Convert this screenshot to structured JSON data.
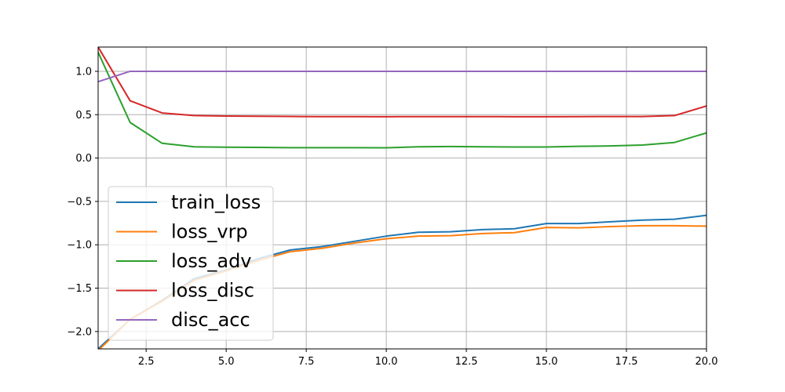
{
  "chart_data": {
    "type": "line",
    "title": "",
    "xlabel": "",
    "ylabel": "",
    "xlim": [
      1,
      20
    ],
    "ylim": [
      -2.2,
      1.28
    ],
    "grid": true,
    "legend_position": "lower-left",
    "x": [
      1,
      2,
      3,
      4,
      5,
      6,
      7,
      8,
      9,
      10,
      11,
      12,
      13,
      14,
      15,
      16,
      17,
      18,
      19,
      20
    ],
    "x_ticks": [
      2.5,
      5.0,
      7.5,
      10.0,
      12.5,
      15.0,
      17.5,
      20.0
    ],
    "x_tick_labels": [
      "2.5",
      "5.0",
      "7.5",
      "10.0",
      "12.5",
      "15.0",
      "17.5",
      "20.0"
    ],
    "y_ticks": [
      -2.0,
      -1.5,
      -1.0,
      -0.5,
      0.0,
      0.5,
      1.0
    ],
    "y_tick_labels": [
      "−2.0",
      "−1.5",
      "−1.0",
      "−0.5",
      "0.0",
      "0.5",
      "1.0"
    ],
    "series": [
      {
        "name": "train_loss",
        "color": "#1f77b4",
        "values": [
          -2.2,
          -1.86,
          -1.64,
          -1.39,
          -1.29,
          -1.16,
          -1.06,
          -1.02,
          -0.96,
          -0.9,
          -0.855,
          -0.85,
          -0.825,
          -0.815,
          -0.755,
          -0.755,
          -0.735,
          -0.715,
          -0.705,
          -0.66
        ]
      },
      {
        "name": "loss_vrp",
        "color": "#ff7f0e",
        "values": [
          -2.22,
          -1.86,
          -1.65,
          -1.41,
          -1.3,
          -1.18,
          -1.08,
          -1.04,
          -0.98,
          -0.93,
          -0.9,
          -0.895,
          -0.87,
          -0.86,
          -0.8,
          -0.805,
          -0.79,
          -0.78,
          -0.78,
          -0.785
        ]
      },
      {
        "name": "loss_adv",
        "color": "#2ca02c",
        "values": [
          1.22,
          0.41,
          0.17,
          0.13,
          0.125,
          0.123,
          0.12,
          0.12,
          0.12,
          0.118,
          0.13,
          0.133,
          0.13,
          0.128,
          0.128,
          0.135,
          0.14,
          0.15,
          0.18,
          0.29
        ]
      },
      {
        "name": "loss_disc",
        "color": "#d62728",
        "values": [
          1.28,
          0.66,
          0.52,
          0.49,
          0.485,
          0.482,
          0.48,
          0.478,
          0.478,
          0.477,
          0.478,
          0.478,
          0.478,
          0.477,
          0.477,
          0.478,
          0.479,
          0.479,
          0.49,
          0.6
        ]
      },
      {
        "name": "disc_acc",
        "color": "#9467bd",
        "values": [
          0.88,
          1.0,
          1.0,
          1.0,
          1.0,
          1.0,
          1.0,
          1.0,
          1.0,
          1.0,
          1.0,
          1.0,
          1.0,
          1.0,
          1.0,
          1.0,
          1.0,
          1.0,
          1.0,
          1.0
        ]
      }
    ]
  }
}
